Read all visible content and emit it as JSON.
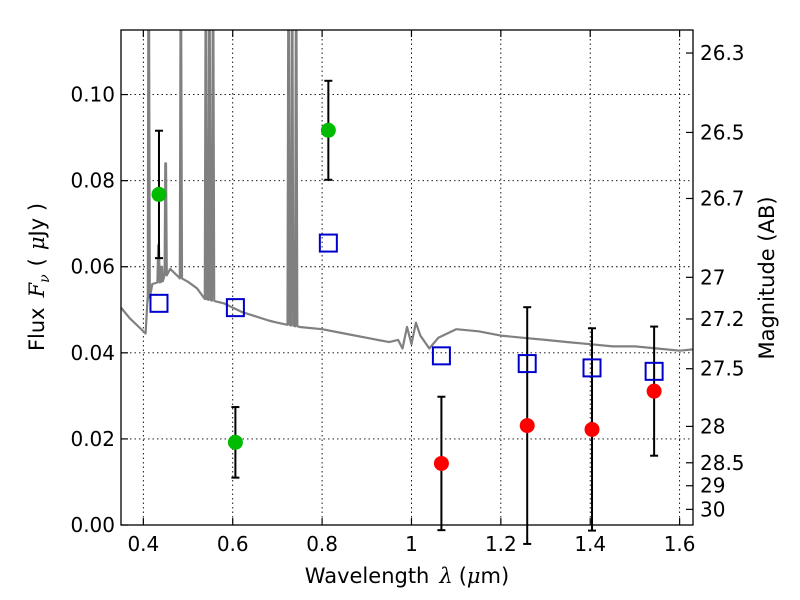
{
  "chart_data": {
    "type": "scatter",
    "xlabel_prefix": "Wavelength",
    "xlabel_symbol": "λ",
    "xlabel_unit_open": "(",
    "xlabel_unit_mu": "μ",
    "xlabel_unit_rest": "m)",
    "ylabel_prefix": "Flux",
    "ylabel_symbol": "F",
    "ylabel_subscript": "ν",
    "ylabel_unit_open": "(",
    "ylabel_unit_mu": "μ",
    "ylabel_unit_rest": "Jy )",
    "ylabel_right": "Magnitude (AB)",
    "xlim": [
      0.35,
      1.63
    ],
    "ylim": [
      0.0,
      0.115
    ],
    "grid": true,
    "x_ticks": [
      {
        "value": 0.4,
        "label": "0.4"
      },
      {
        "value": 0.6,
        "label": "0.6"
      },
      {
        "value": 0.8,
        "label": "0.8"
      },
      {
        "value": 1.0,
        "label": "1"
      },
      {
        "value": 1.2,
        "label": "1.2"
      },
      {
        "value": 1.4,
        "label": "1.4"
      },
      {
        "value": 1.6,
        "label": "1.6"
      }
    ],
    "y_ticks": [
      {
        "value": 0.0,
        "label": "0.00"
      },
      {
        "value": 0.02,
        "label": "0.02"
      },
      {
        "value": 0.04,
        "label": "0.04"
      },
      {
        "value": 0.06,
        "label": "0.06"
      },
      {
        "value": 0.08,
        "label": "0.08"
      },
      {
        "value": 0.1,
        "label": "0.10"
      }
    ],
    "y2_ticks": [
      {
        "value": 26.3,
        "label": "26.3"
      },
      {
        "value": 26.5,
        "label": "26.5"
      },
      {
        "value": 26.7,
        "label": "26.7"
      },
      {
        "value": 27.0,
        "label": "27"
      },
      {
        "value": 27.2,
        "label": "27.2"
      },
      {
        "value": 27.5,
        "label": "27.5"
      },
      {
        "value": 28.0,
        "label": "28"
      },
      {
        "value": 28.5,
        "label": "28.5"
      },
      {
        "value": 29.0,
        "label": "29"
      },
      {
        "value": 30.0,
        "label": "30"
      }
    ],
    "colors": {
      "green_points": "#00bb00",
      "red_points": "#ff0000",
      "model_squares": "#0000cc",
      "sed_line": "#808080",
      "error_bars": "#000000"
    },
    "series": [
      {
        "marker": "circle",
        "color_key": "green_points",
        "points": [
          {
            "x": 0.435,
            "y": 0.0768,
            "err": 0.0148
          },
          {
            "x": 0.606,
            "y": 0.0192,
            "err": 0.0082
          },
          {
            "x": 0.814,
            "y": 0.0917,
            "err": 0.0115
          }
        ]
      },
      {
        "marker": "circle",
        "color_key": "red_points",
        "points": [
          {
            "x": 1.067,
            "y": 0.0143,
            "err": 0.0155
          },
          {
            "x": 1.259,
            "y": 0.0231,
            "err": 0.0275
          },
          {
            "x": 1.404,
            "y": 0.0222,
            "err": 0.0235
          },
          {
            "x": 1.543,
            "y": 0.0311,
            "err": 0.015
          }
        ]
      },
      {
        "marker": "open-square",
        "color_key": "model_squares",
        "points": [
          {
            "x": 0.435,
            "y": 0.0515
          },
          {
            "x": 0.606,
            "y": 0.0505
          },
          {
            "x": 0.814,
            "y": 0.0655
          },
          {
            "x": 1.067,
            "y": 0.0393
          },
          {
            "x": 1.259,
            "y": 0.0375
          },
          {
            "x": 1.404,
            "y": 0.0365
          },
          {
            "x": 1.543,
            "y": 0.0357
          }
        ]
      }
    ],
    "sed_model": {
      "continuum": [
        [
          0.35,
          0.0505
        ],
        [
          0.37,
          0.048
        ],
        [
          0.39,
          0.046
        ],
        [
          0.405,
          0.0445
        ],
        [
          0.41,
          0.052
        ],
        [
          0.42,
          0.056
        ],
        [
          0.44,
          0.0565
        ],
        [
          0.46,
          0.0595
        ],
        [
          0.48,
          0.0575
        ],
        [
          0.5,
          0.0565
        ],
        [
          0.52,
          0.055
        ],
        [
          0.54,
          0.0525
        ],
        [
          0.56,
          0.052
        ],
        [
          0.58,
          0.0515
        ],
        [
          0.6,
          0.0505
        ],
        [
          0.62,
          0.0495
        ],
        [
          0.65,
          0.0485
        ],
        [
          0.68,
          0.0475
        ],
        [
          0.7,
          0.047
        ],
        [
          0.75,
          0.046
        ],
        [
          0.8,
          0.0455
        ],
        [
          0.85,
          0.0445
        ],
        [
          0.9,
          0.0435
        ],
        [
          0.95,
          0.0425
        ],
        [
          0.97,
          0.043
        ],
        [
          0.98,
          0.041
        ],
        [
          0.99,
          0.046
        ],
        [
          1.0,
          0.042
        ],
        [
          1.01,
          0.047
        ],
        [
          1.02,
          0.044
        ],
        [
          1.04,
          0.041
        ],
        [
          1.06,
          0.0435
        ],
        [
          1.1,
          0.0455
        ],
        [
          1.15,
          0.045
        ],
        [
          1.2,
          0.044
        ],
        [
          1.25,
          0.0435
        ],
        [
          1.3,
          0.043
        ],
        [
          1.35,
          0.0425
        ],
        [
          1.4,
          0.042
        ],
        [
          1.45,
          0.0415
        ],
        [
          1.5,
          0.0415
        ],
        [
          1.55,
          0.041
        ],
        [
          1.6,
          0.0405
        ],
        [
          1.63,
          0.0408
        ]
      ],
      "emission_lines": [
        {
          "x": 0.412,
          "base": 0.052,
          "peak": 0.115
        },
        {
          "x": 0.434,
          "base": 0.0565,
          "peak": 0.065
        },
        {
          "x": 0.441,
          "base": 0.0565,
          "peak": 0.06
        },
        {
          "x": 0.45,
          "base": 0.058,
          "peak": 0.084
        },
        {
          "x": 0.484,
          "base": 0.0575,
          "peak": 0.115
        },
        {
          "x": 0.54,
          "base": 0.0525,
          "peak": 0.115
        },
        {
          "x": 0.548,
          "base": 0.052,
          "peak": 0.115
        },
        {
          "x": 0.556,
          "base": 0.052,
          "peak": 0.115
        },
        {
          "x": 0.725,
          "base": 0.047,
          "peak": 0.115
        },
        {
          "x": 0.733,
          "base": 0.047,
          "peak": 0.115
        },
        {
          "x": 0.742,
          "base": 0.0465,
          "peak": 0.115
        }
      ]
    }
  }
}
